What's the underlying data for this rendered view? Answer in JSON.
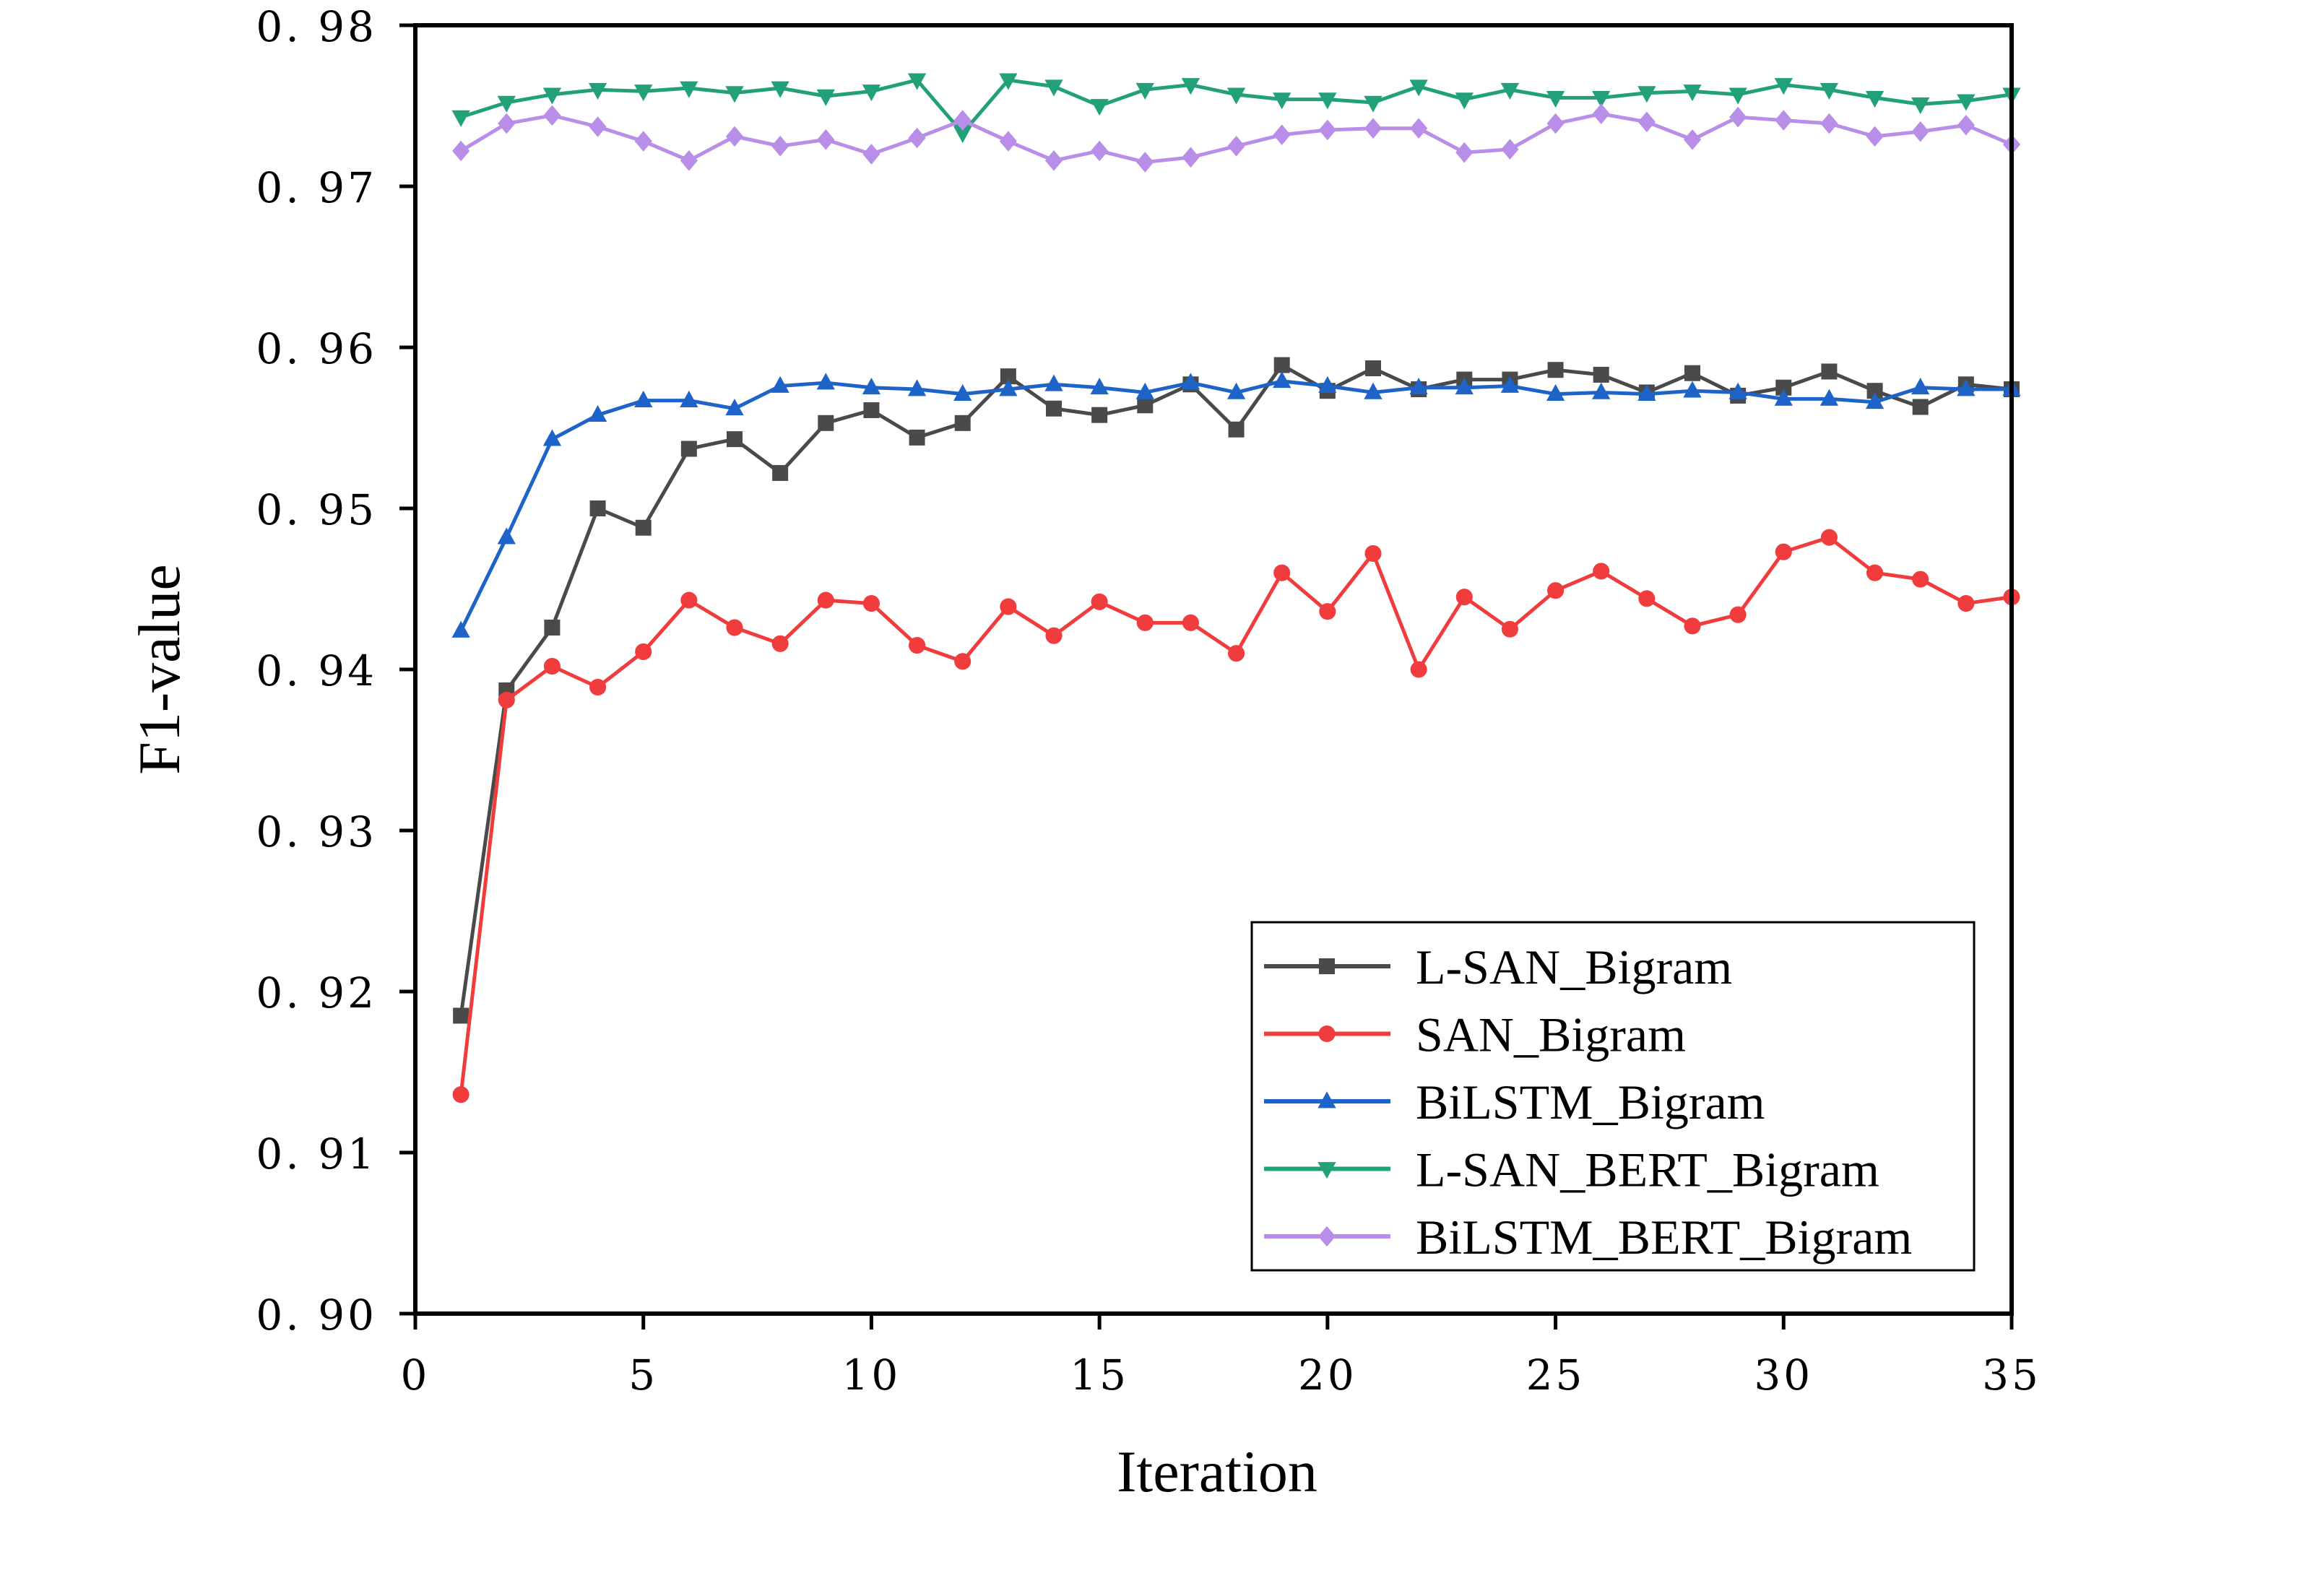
{
  "chart_data": {
    "type": "line",
    "title": "",
    "xlabel": "Iteration",
    "ylabel": "F1-value",
    "xlim": [
      0,
      35
    ],
    "ylim": [
      0.9,
      0.98
    ],
    "x_ticks": [
      0,
      5,
      10,
      15,
      20,
      25,
      30,
      35
    ],
    "x_tick_labels": [
      "0",
      "5",
      "10",
      "15",
      "20",
      "25",
      "30",
      "35"
    ],
    "y_ticks": [
      0.9,
      0.91,
      0.92,
      0.93,
      0.94,
      0.95,
      0.96,
      0.97,
      0.98
    ],
    "y_tick_labels": [
      "0. 90",
      "0. 91",
      "0. 92",
      "0. 93",
      "0. 94",
      "0. 95",
      "0. 96",
      "0. 97",
      "0. 98"
    ],
    "grid": false,
    "legend_position": "bottom-right",
    "x": [
      1,
      2,
      3,
      4,
      5,
      6,
      7,
      8,
      9,
      10,
      11,
      12,
      13,
      14,
      15,
      16,
      17,
      18,
      19,
      20,
      21,
      22,
      23,
      24,
      25,
      26,
      27,
      28,
      29,
      30,
      31,
      32,
      33,
      34,
      35
    ],
    "series": [
      {
        "name": "L-SAN_Bigram",
        "color": "#4a4a4a",
        "marker": "square",
        "values": [
          0.9185,
          0.9387,
          0.9426,
          0.95,
          0.9488,
          0.9537,
          0.9543,
          0.9522,
          0.9553,
          0.9561,
          0.9544,
          0.9553,
          0.9582,
          0.9562,
          0.9558,
          0.9564,
          0.9577,
          0.9549,
          0.9589,
          0.9573,
          0.9587,
          0.9574,
          0.958,
          0.958,
          0.9586,
          0.9583,
          0.9572,
          0.9584,
          0.957,
          0.9575,
          0.9585,
          0.9573,
          0.9563,
          0.9577,
          0.9574
        ]
      },
      {
        "name": "SAN_Bigram",
        "color": "#f03c3c",
        "marker": "circle",
        "values": [
          0.9136,
          0.9381,
          0.9402,
          0.9389,
          0.9411,
          0.9443,
          0.9426,
          0.9416,
          0.9443,
          0.9441,
          0.9415,
          0.9405,
          0.9439,
          0.9421,
          0.9442,
          0.9429,
          0.9429,
          0.941,
          0.946,
          0.9436,
          0.9472,
          0.94,
          0.9445,
          0.9425,
          0.9449,
          0.9461,
          0.9444,
          0.9427,
          0.9434,
          0.9473,
          0.9482,
          0.946,
          0.9456,
          0.9441,
          0.9445
        ]
      },
      {
        "name": "BiLSTM_Bigram",
        "color": "#1e64c8",
        "marker": "triangle-up",
        "values": [
          0.9424,
          0.9482,
          0.9543,
          0.9558,
          0.9567,
          0.9567,
          0.9562,
          0.9576,
          0.9578,
          0.9575,
          0.9574,
          0.9571,
          0.9574,
          0.9577,
          0.9575,
          0.9572,
          0.9578,
          0.9572,
          0.9579,
          0.9576,
          0.9572,
          0.9575,
          0.9575,
          0.9576,
          0.9571,
          0.9572,
          0.9571,
          0.9573,
          0.9572,
          0.9568,
          0.9568,
          0.9566,
          0.9575,
          0.9574,
          0.9574
        ]
      },
      {
        "name": "L-SAN_BERT_Bigram",
        "color": "#22a07a",
        "marker": "triangle-down",
        "values": [
          0.9743,
          0.9752,
          0.9757,
          0.976,
          0.9759,
          0.9761,
          0.9758,
          0.9761,
          0.9756,
          0.9759,
          0.9766,
          0.9733,
          0.9766,
          0.9762,
          0.975,
          0.976,
          0.9763,
          0.9757,
          0.9754,
          0.9754,
          0.9752,
          0.9762,
          0.9754,
          0.976,
          0.9755,
          0.9755,
          0.9758,
          0.9759,
          0.9757,
          0.9763,
          0.976,
          0.9755,
          0.9751,
          0.9753,
          0.9757
        ]
      },
      {
        "name": "BiLSTM_BERT_Bigram",
        "color": "#b88ee8",
        "marker": "diamond",
        "values": [
          0.9722,
          0.9739,
          0.9744,
          0.9737,
          0.9728,
          0.9716,
          0.9731,
          0.9725,
          0.9729,
          0.972,
          0.973,
          0.9741,
          0.9728,
          0.9716,
          0.9722,
          0.9715,
          0.9718,
          0.9725,
          0.9732,
          0.9735,
          0.9736,
          0.9736,
          0.9721,
          0.9723,
          0.9739,
          0.9745,
          0.974,
          0.9729,
          0.9743,
          0.9741,
          0.9739,
          0.9731,
          0.9734,
          0.9738,
          0.9726
        ]
      }
    ]
  }
}
